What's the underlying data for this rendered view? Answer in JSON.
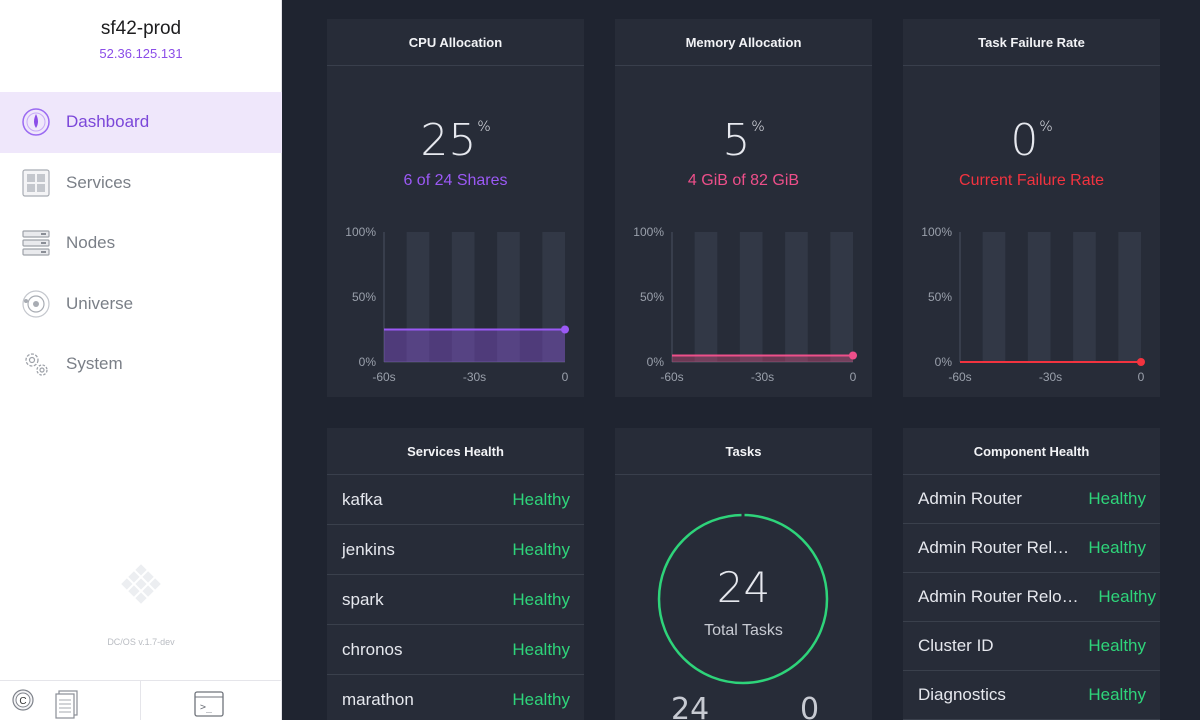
{
  "cluster": {
    "name": "sf42-prod",
    "ip": "52.36.125.131"
  },
  "nav": [
    {
      "label": "Dashboard",
      "icon": "dashboard-icon",
      "active": true
    },
    {
      "label": "Services",
      "icon": "services-icon"
    },
    {
      "label": "Nodes",
      "icon": "nodes-icon"
    },
    {
      "label": "Universe",
      "icon": "universe-icon"
    },
    {
      "label": "System",
      "icon": "system-icon"
    }
  ],
  "version": "DC/OS v.1.7-dev",
  "colors": {
    "purple": "#9b59f5",
    "pink": "#ee4f8a",
    "red": "#f2333f",
    "green": "#2ed47a"
  },
  "cpu": {
    "title": "CPU Allocation",
    "value": "25",
    "unit": "%",
    "sub": "6 of 24 Shares",
    "level": 0.25
  },
  "memory": {
    "title": "Memory Allocation",
    "value": "5",
    "unit": "%",
    "sub": "4 GiB of 82 GiB",
    "level": 0.05
  },
  "failure": {
    "title": "Task Failure Rate",
    "value": "0",
    "unit": "%",
    "sub": "Current Failure Rate",
    "level": 0.0
  },
  "chart_axes": {
    "y_ticks": [
      "100%",
      "50%",
      "0%"
    ],
    "x_ticks": [
      "-60s",
      "-30s",
      "0"
    ]
  },
  "services_health": {
    "title": "Services Health",
    "rows": [
      {
        "name": "kafka",
        "status": "Healthy"
      },
      {
        "name": "jenkins",
        "status": "Healthy"
      },
      {
        "name": "spark",
        "status": "Healthy"
      },
      {
        "name": "chronos",
        "status": "Healthy"
      },
      {
        "name": "marathon",
        "status": "Healthy"
      }
    ]
  },
  "tasks": {
    "title": "Tasks",
    "total": "24",
    "label": "Total Tasks",
    "running": "24",
    "failed": "0"
  },
  "component_health": {
    "title": "Component Health",
    "rows": [
      {
        "name": "Admin Router",
        "status": "Healthy"
      },
      {
        "name": "Admin Router Rel…",
        "status": "Healthy"
      },
      {
        "name": "Admin Router Relo…",
        "status": "Healthy"
      },
      {
        "name": "Cluster ID",
        "status": "Healthy"
      },
      {
        "name": "Diagnostics",
        "status": "Healthy"
      }
    ]
  }
}
